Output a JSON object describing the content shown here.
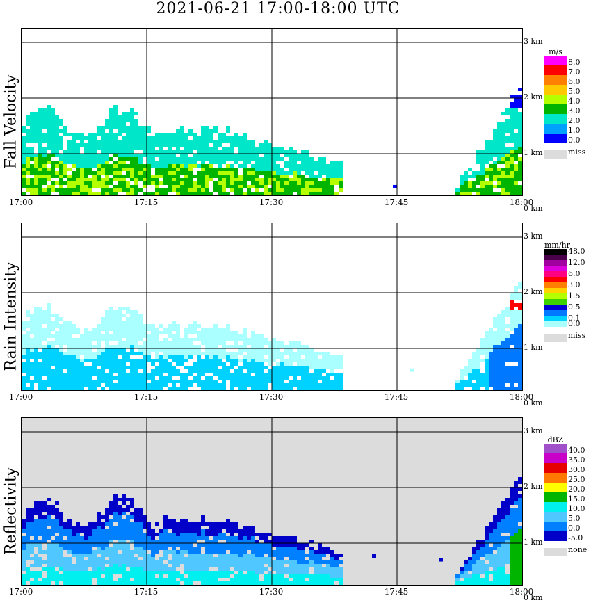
{
  "title": "2021-06-21   17:00-18:00 UTC",
  "x_ticks": [
    "17:00",
    "17:15",
    "17:30",
    "17:45",
    "18:00"
  ],
  "height_ticks": [
    "3 km",
    "2 km",
    "1 km",
    "0 km"
  ],
  "panels": [
    {
      "ylabel": "Fall Velocity",
      "unit": "m/s",
      "levels": [
        "8.0",
        "7.0",
        "6.0",
        "5.0",
        "4.0",
        "3.0",
        "2.0",
        "1.0",
        "0.0"
      ],
      "colors": [
        "#ff00ff",
        "#ff0000",
        "#ff8000",
        "#ffc800",
        "#b4ff00",
        "#00b400",
        "#00e6c8",
        "#00a0ff",
        "#0000ff"
      ],
      "missing_label": "miss",
      "missing_color": "#dcdcdc"
    },
    {
      "ylabel": "Rain Intensity",
      "unit": "mm/hr",
      "levels": [
        "48.0",
        "",
        "12.0",
        "",
        "6.0",
        "",
        "3.0",
        "",
        "1.5",
        "",
        "0.5",
        "",
        "0.1",
        "0.0"
      ],
      "colors": [
        "#000000",
        "#4b004b",
        "#a000a0",
        "#dc00dc",
        "#ff0080",
        "#ff0000",
        "#ff8000",
        "#ffd200",
        "#b4ff00",
        "#3cd200",
        "#0000d2",
        "#0078ff",
        "#00d2ff",
        "#aaffff"
      ],
      "missing_label": "miss",
      "missing_color": "#dcdcdc"
    },
    {
      "ylabel": "Reflectivity",
      "unit": "dBZ",
      "levels": [
        "40.0",
        "35.0",
        "30.0",
        "25.0",
        "20.0",
        "15.0",
        "10.0",
        "5.0",
        "0.0",
        "-5.0"
      ],
      "colors": [
        "#a050c8",
        "#c800c8",
        "#e60000",
        "#ff7800",
        "#ffff00",
        "#00b400",
        "#00f0f0",
        "#50c8ff",
        "#0080ff",
        "#0000c8"
      ],
      "missing_label": "none",
      "missing_color": "#dcdcdc"
    }
  ],
  "chart_data": {
    "type": "heatmap",
    "title": "2021-06-21   17:00-18:00 UTC",
    "x_range": [
      "17:00",
      "18:00"
    ],
    "y_range_km": [
      0,
      3
    ],
    "panels": [
      "Fall Velocity",
      "Rain Intensity",
      "Reflectivity"
    ]
  }
}
